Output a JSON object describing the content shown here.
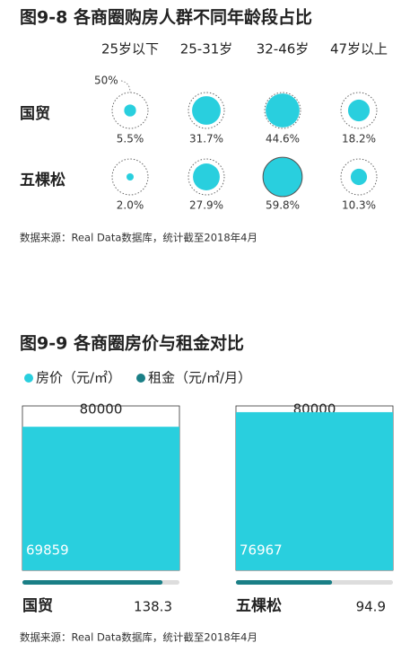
{
  "chart_data": [
    {
      "type": "bubble",
      "title": "图9-8 各商圈购房人群不同年龄段占比",
      "categories": [
        "25岁以下",
        "25-31岁",
        "32-46岁",
        "47岁以上"
      ],
      "series": [
        {
          "name": "国贸",
          "color": "#29cfde",
          "values": [
            5.5,
            31.7,
            44.6,
            18.2
          ],
          "value_labels": [
            "5.5%",
            "31.7%",
            "44.6%",
            "18.2%"
          ]
        },
        {
          "name": "五棵松",
          "color": "#29cfde",
          "values": [
            2.0,
            27.9,
            59.8,
            10.3
          ],
          "value_labels": [
            "2.0%",
            "27.9%",
            "59.8%",
            "10.3%"
          ]
        }
      ],
      "size_ticks": [
        {
          "value": 50,
          "label": "50%"
        }
      ],
      "note": "数据来源：Real Data数据库，统计截至2018年4月"
    },
    {
      "type": "bar",
      "title": "图9-9 各商圈房价与租金对比",
      "categories": [
        "国贸",
        "五棵松"
      ],
      "series": [
        {
          "name": "房价（元/㎡）",
          "color": "#29cfde",
          "values": [
            69859,
            76967
          ]
        },
        {
          "name": "租金（元/㎡/月）",
          "color": "#1a7f86",
          "axis": "y2",
          "values": [
            138.3,
            94.9
          ]
        }
      ],
      "ylim": [
        0,
        80000
      ],
      "yticks": [
        80000
      ],
      "y2lim": [
        0,
        155
      ],
      "note": "数据来源：Real Data数据库，统计截至2018年4月"
    }
  ]
}
